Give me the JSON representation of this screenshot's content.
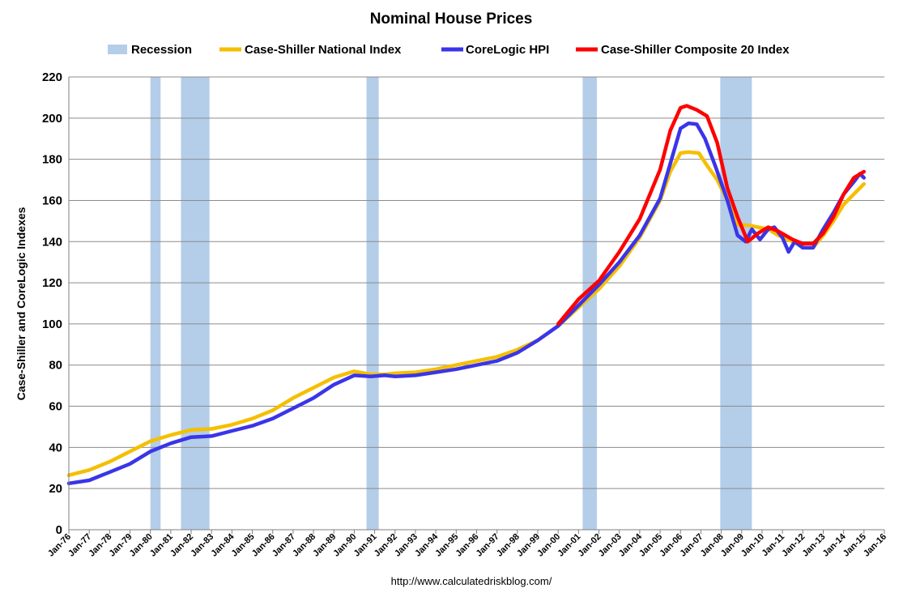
{
  "chart_data": {
    "type": "line",
    "title": "Nominal House Prices",
    "ylabel": "Case-Shiller and CoreLogic Indexes",
    "xlabel": "",
    "source": "http://www.calculatedriskblog.com/",
    "ylim": [
      0,
      220
    ],
    "yticks": [
      "0",
      "20",
      "40",
      "60",
      "80",
      "100",
      "120",
      "140",
      "160",
      "180",
      "200",
      "220"
    ],
    "xlim": [
      1976,
      2016
    ],
    "xticks": [
      "Jan-76",
      "Jan-77",
      "Jan-78",
      "Jan-79",
      "Jan-80",
      "Jan-81",
      "Jan-82",
      "Jan-83",
      "Jan-84",
      "Jan-85",
      "Jan-86",
      "Jan-87",
      "Jan-88",
      "Jan-89",
      "Jan-90",
      "Jan-91",
      "Jan-92",
      "Jan-93",
      "Jan-94",
      "Jan-95",
      "Jan-96",
      "Jan-97",
      "Jan-98",
      "Jan-99",
      "Jan-00",
      "Jan-01",
      "Jan-02",
      "Jan-03",
      "Jan-04",
      "Jan-05",
      "Jan-06",
      "Jan-07",
      "Jan-08",
      "Jan-09",
      "Jan-10",
      "Jan-11",
      "Jan-12",
      "Jan-13",
      "Jan-14",
      "Jan-15",
      "Jan-16"
    ],
    "grid": true,
    "legend_position": "top",
    "recession_label": "Recession",
    "recession_color": "#b4cde9",
    "recessions": [
      [
        1980.0,
        1980.5
      ],
      [
        1981.5,
        1982.9
      ],
      [
        1990.6,
        1991.2
      ],
      [
        2001.2,
        2001.9
      ],
      [
        2007.95,
        2009.5
      ]
    ],
    "series": [
      {
        "name": "Case-Shiller National Index",
        "color": "#f5bf00",
        "x": [
          1976,
          1977,
          1978,
          1979,
          1980,
          1981,
          1982,
          1983,
          1984,
          1985,
          1986,
          1987,
          1988,
          1989,
          1990,
          1990.8,
          1991.5,
          1992,
          1993,
          1994,
          1995,
          1996,
          1997,
          1998,
          1999,
          2000,
          2001,
          2002,
          2003,
          2004,
          2005,
          2005.5,
          2006,
          2006.4,
          2006.9,
          2007.3,
          2007.8,
          2008.3,
          2008.8,
          2009.3,
          2009.8,
          2010.3,
          2010.8,
          2011.5,
          2012.1,
          2012.5,
          2013,
          2013.5,
          2014,
          2014.5,
          2015
        ],
        "values": [
          26.5,
          29,
          33,
          38,
          43,
          46,
          48.5,
          49,
          51,
          54,
          58,
          64,
          69,
          74,
          77,
          75.5,
          75.5,
          76,
          76.5,
          78,
          80,
          82,
          84,
          87.5,
          92,
          99,
          108,
          117,
          128,
          142,
          160,
          174,
          183,
          183.5,
          183,
          177,
          170,
          160,
          148,
          148,
          147,
          146,
          143,
          140,
          137,
          137,
          143,
          150,
          158,
          163,
          168
        ]
      },
      {
        "name": "CoreLogic HPI",
        "color": "#3a35e8",
        "x": [
          1976,
          1977,
          1978,
          1979,
          1980,
          1981,
          1982,
          1983,
          1984,
          1985,
          1986,
          1987,
          1988,
          1989,
          1990,
          1990.8,
          1991.5,
          1992,
          1993,
          1994,
          1995,
          1996,
          1997,
          1998,
          1999,
          2000,
          2001,
          2002,
          2003,
          2004,
          2005,
          2005.5,
          2006,
          2006.4,
          2006.8,
          2007.2,
          2007.7,
          2008.3,
          2008.8,
          2009.2,
          2009.5,
          2009.9,
          2010.3,
          2010.6,
          2011,
          2011.3,
          2011.6,
          2012,
          2012.5,
          2013,
          2013.5,
          2014,
          2014.5,
          2014.8,
          2015
        ],
        "values": [
          22.5,
          24,
          28,
          32,
          38,
          42,
          45,
          45.5,
          48,
          50.5,
          54,
          59,
          64,
          70.5,
          75,
          74.5,
          75,
          74.5,
          75,
          76.5,
          78,
          80,
          82,
          86,
          92,
          99,
          109,
          119,
          130,
          143,
          161,
          178,
          195,
          197.5,
          197,
          190,
          177,
          160,
          143,
          140,
          146,
          141,
          146,
          147,
          142,
          135,
          140,
          137,
          137,
          146,
          154,
          163,
          169,
          173,
          171
        ]
      },
      {
        "name": "Case-Shiller Composite 20 Index",
        "color": "#ff0000",
        "x": [
          2000,
          2000.5,
          2001,
          2002,
          2003,
          2004,
          2005,
          2005.5,
          2006,
          2006.3,
          2006.8,
          2007.3,
          2007.8,
          2008.3,
          2008.8,
          2009.3,
          2009.8,
          2010.3,
          2010.8,
          2011.5,
          2012,
          2012.5,
          2013,
          2013.5,
          2014,
          2014.5,
          2015
        ],
        "values": [
          100,
          106,
          112,
          121,
          135,
          151,
          175,
          194,
          205,
          206,
          204,
          201,
          188,
          166,
          152,
          140,
          144,
          147,
          145,
          141,
          139,
          139,
          144,
          152,
          163,
          171,
          174
        ]
      }
    ]
  }
}
